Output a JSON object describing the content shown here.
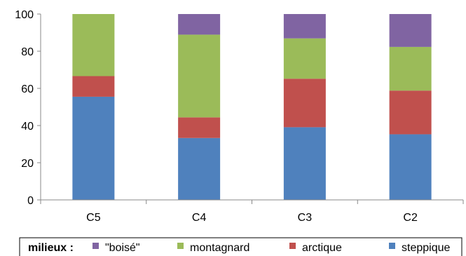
{
  "chart_data": {
    "type": "bar",
    "stacked": true,
    "categories": [
      "C5",
      "C4",
      "C3",
      "C2"
    ],
    "series": [
      {
        "name": "steppique",
        "values": [
          55.5,
          33.3,
          39.1,
          35.3
        ]
      },
      {
        "name": "arctique",
        "values": [
          11.1,
          11.1,
          26.1,
          23.5
        ]
      },
      {
        "name": "montagnard",
        "values": [
          33.4,
          44.5,
          21.7,
          23.5
        ]
      },
      {
        "name": "\"boisé\"",
        "values": [
          0,
          11.1,
          13.1,
          17.7
        ]
      }
    ],
    "yticks": [
      "0",
      "20",
      "40",
      "60",
      "80",
      "100"
    ],
    "ylim": [
      0,
      100
    ],
    "grid": false,
    "legend": {
      "title": "milieux :",
      "order": [
        "\"boisé\"",
        "montagnard",
        "arctique",
        "steppique"
      ],
      "placement": "bottom"
    },
    "colors": {
      "steppique": "#4f81bd",
      "arctique": "#c0504d",
      "montagnard": "#9bbb59",
      "\"boisé\"": "#8064a2"
    }
  }
}
